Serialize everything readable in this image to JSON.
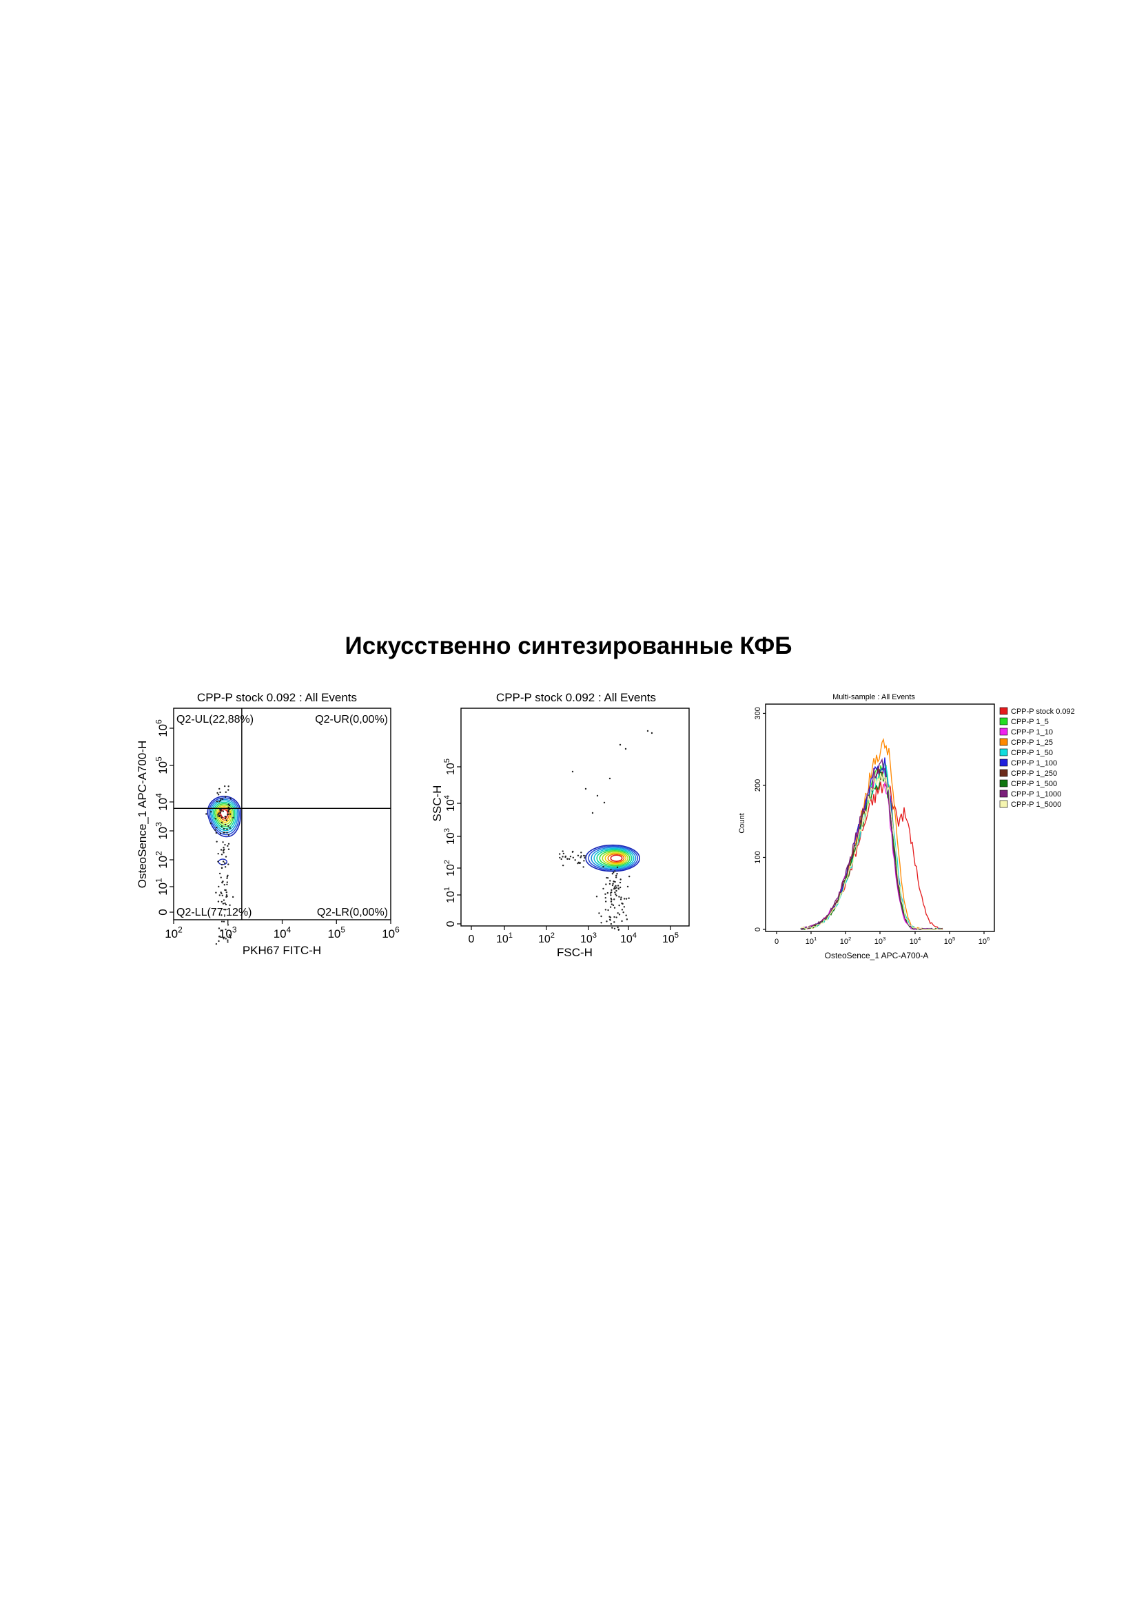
{
  "page_title": "Искусственно синтезированные КФБ",
  "chart_data": [
    {
      "type": "contour",
      "title": "CPP-P stock 0.092 : All Events",
      "xlabel": "PKH67 FITC-H",
      "ylabel": "OsteoSence_1 APC-A700-H",
      "x_scale": "log",
      "y_scale": "biexponential",
      "xlim": [
        100,
        1000000
      ],
      "x_ticks": [
        "10",
        "10",
        "10",
        "10",
        "10"
      ],
      "x_tick_exp": [
        "2",
        "3",
        "4",
        "5",
        "6"
      ],
      "x_tick_values": [
        100,
        1000,
        10000,
        100000,
        1000000
      ],
      "y_ticks": [
        "0",
        "10",
        "10",
        "10",
        "10",
        "10",
        "10"
      ],
      "y_tick_exp": [
        "",
        "1",
        "2",
        "3",
        "4",
        "5",
        "6"
      ],
      "y_tick_values": [
        0,
        10,
        100,
        1000,
        10000,
        100000,
        1000000
      ],
      "gate": {
        "x": 1800,
        "y": 6000
      },
      "quadrants": [
        {
          "name": "Q2-UL",
          "label": "Q2-UL(22,88%)",
          "percent": 22.88
        },
        {
          "name": "Q2-UR",
          "label": "Q2-UR(0,00%)",
          "percent": 0.0
        },
        {
          "name": "Q2-LL",
          "label": "Q2-LL(77,12%)",
          "percent": 77.12
        },
        {
          "name": "Q2-LR",
          "label": "Q2-LR(0,00%)",
          "percent": 0.0
        }
      ],
      "population_center": {
        "x": 850,
        "y": 4000
      }
    },
    {
      "type": "contour",
      "title": "CPP-P stock 0.092 : All Events",
      "xlabel": "FSC-H",
      "ylabel": "SSC-H",
      "x_scale": "biexponential",
      "y_scale": "biexponential",
      "x_ticks": [
        "0",
        "10",
        "10",
        "10",
        "10",
        "10"
      ],
      "x_tick_exp": [
        "",
        "1",
        "2",
        "3",
        "4",
        "5"
      ],
      "x_tick_values": [
        0,
        10,
        100,
        1000,
        10000,
        100000
      ],
      "y_ticks": [
        "0",
        "10",
        "10",
        "10",
        "10",
        "10"
      ],
      "y_tick_exp": [
        "",
        "1",
        "2",
        "3",
        "4",
        "5"
      ],
      "y_tick_values": [
        0,
        10,
        100,
        1000,
        10000,
        100000
      ],
      "population_center": {
        "x": 6000,
        "y": 250
      }
    },
    {
      "type": "histogram",
      "title": "Multi-sample : All Events",
      "xlabel": "OsteoSence_1 APC-A700-A",
      "ylabel": "Count",
      "x_scale": "biexponential",
      "x_ticks": [
        "0",
        "10",
        "10",
        "10",
        "10",
        "10",
        "10"
      ],
      "x_tick_exp": [
        "",
        "1",
        "2",
        "3",
        "4",
        "5",
        "6"
      ],
      "x_tick_values": [
        0,
        10,
        100,
        1000,
        10000,
        100000,
        1000000
      ],
      "y_ticks": [
        "0",
        "100",
        "200",
        "300"
      ],
      "y_tick_values": [
        0,
        100,
        200,
        300
      ],
      "ylim": [
        0,
        310
      ],
      "legend_position": "right",
      "series": [
        {
          "name": "CPP-P stock 0.092",
          "color": "#e41a1c",
          "peak_x": 1400,
          "peak_count": 200,
          "shoulder_x": 4500,
          "shoulder_count": 160
        },
        {
          "name": "CPP-P 1_5",
          "color": "#22dd22",
          "peak_x": 1300,
          "peak_count": 225
        },
        {
          "name": "CPP-P 1_10",
          "color": "#ee22ee",
          "peak_x": 1150,
          "peak_count": 215
        },
        {
          "name": "CPP-P 1_25",
          "color": "#ff8800",
          "peak_x": 1450,
          "peak_count": 255
        },
        {
          "name": "CPP-P 1_50",
          "color": "#11dddd",
          "peak_x": 1350,
          "peak_count": 220
        },
        {
          "name": "CPP-P 1_100",
          "color": "#1f1fdd",
          "peak_x": 1250,
          "peak_count": 230
        },
        {
          "name": "CPP-P 1_250",
          "color": "#6b2a1a",
          "peak_x": 1200,
          "peak_count": 220
        },
        {
          "name": "CPP-P 1_500",
          "color": "#117711",
          "peak_x": 1250,
          "peak_count": 210
        },
        {
          "name": "CPP-P 1_1000",
          "color": "#7a1f7a",
          "peak_x": 1150,
          "peak_count": 225
        },
        {
          "name": "CPP-P 1_5000",
          "color": "#f5f5b0",
          "peak_x": 1300,
          "peak_count": 215
        }
      ]
    }
  ]
}
